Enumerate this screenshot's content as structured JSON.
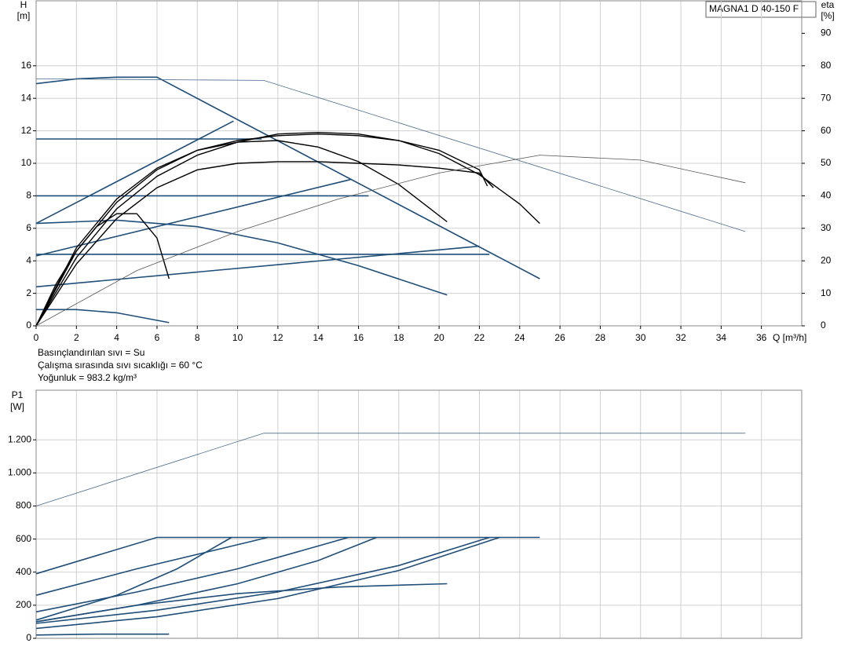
{
  "chart_data": [
    {
      "type": "line",
      "title": "MAGNA1 D 40-150 F",
      "y_label": "H",
      "y_unit": "[m]",
      "y2_label": "eta",
      "y2_unit": "[%]",
      "x_label": "Q [m³/h]",
      "notes": [
        "Basınçlandırılan sıvı = Su",
        "Çalışma sırasında sıvı sıcaklığı = 60 °C",
        "Yoğunluk = 983.2 kg/m³"
      ],
      "xlim": [
        0,
        38
      ],
      "xticks": [
        0,
        2,
        4,
        6,
        8,
        10,
        12,
        14,
        16,
        18,
        20,
        22,
        24,
        26,
        28,
        30,
        32,
        34,
        36
      ],
      "ylim": [
        0,
        20
      ],
      "yticks": [
        0,
        2,
        4,
        6,
        8,
        10,
        12,
        14,
        16
      ],
      "y2lim": [
        0,
        100
      ],
      "y2ticks": [
        0,
        10,
        20,
        30,
        40,
        50,
        60,
        70,
        80,
        90
      ],
      "grid": true,
      "series": [
        {
          "color": "#1f4e79",
          "line_width": 1.6,
          "x": [
            0,
            2,
            4,
            6,
            25
          ],
          "values": [
            14.9,
            15.2,
            15.3,
            15.3,
            2.9
          ]
        },
        {
          "color": "#1f4e79",
          "line_width": 1.6,
          "x": [
            0,
            9.8
          ],
          "values": [
            6.3,
            12.6
          ]
        },
        {
          "color": "#1f4e79",
          "line_width": 1.6,
          "x": [
            0,
            11.2
          ],
          "values": [
            11.5,
            11.5
          ]
        },
        {
          "color": "#1f4e79",
          "line_width": 1.6,
          "x": [
            0,
            16.5
          ],
          "values": [
            8,
            8
          ]
        },
        {
          "color": "#1f4e79",
          "line_width": 1.6,
          "x": [
            0,
            22.5
          ],
          "values": [
            4.4,
            4.4
          ]
        },
        {
          "color": "#1f4e79",
          "line_width": 1.6,
          "x": [
            0,
            15.6
          ],
          "values": [
            4.3,
            9
          ]
        },
        {
          "color": "#1f4e79",
          "line_width": 1.6,
          "x": [
            0,
            22
          ],
          "values": [
            2.4,
            4.9
          ]
        },
        {
          "color": "#1f4e79",
          "line_width": 1.6,
          "x": [
            0,
            4,
            8,
            12,
            16,
            20.4
          ],
          "values": [
            6.3,
            6.5,
            6.1,
            5.1,
            3.7,
            1.9
          ]
        },
        {
          "color": "#1f4e79",
          "line_width": 1.6,
          "x": [
            0,
            2,
            4,
            6.6
          ],
          "values": [
            1,
            1,
            0.8,
            0.2
          ]
        },
        {
          "color": "#4a6a8a",
          "line_width": 0.8,
          "x": [
            0,
            11.3,
            35.2
          ],
          "values": [
            15.2,
            15.1,
            5.8
          ]
        },
        {
          "color": "#000000",
          "line_width": 1.4,
          "x": [
            0,
            1,
            2,
            3,
            4,
            5,
            6,
            6.6
          ],
          "values": [
            0,
            2.6,
            4.6,
            6.1,
            6.9,
            6.9,
            5.4,
            2.9
          ]
        },
        {
          "color": "#000000",
          "line_width": 1.4,
          "x": [
            0,
            2,
            4,
            6,
            8,
            10,
            12,
            14,
            16,
            18,
            20.4
          ],
          "values": [
            0,
            4.8,
            7.8,
            9.7,
            10.8,
            11.3,
            11.4,
            11,
            10.1,
            8.7,
            6.4
          ]
        },
        {
          "color": "#000000",
          "line_width": 1.4,
          "x": [
            0,
            2,
            4,
            6,
            8,
            10,
            12,
            14,
            16,
            18,
            20,
            22,
            22.4
          ],
          "values": [
            0,
            4.6,
            7.6,
            9.6,
            10.8,
            11.4,
            11.7,
            11.8,
            11.7,
            11.4,
            10.8,
            9.6,
            8.6
          ]
        },
        {
          "color": "#000000",
          "line_width": 1.4,
          "x": [
            0,
            2,
            4,
            6,
            8,
            10,
            12,
            14,
            16,
            18,
            20,
            22,
            24,
            25
          ],
          "values": [
            0,
            4.2,
            7.2,
            9.2,
            10.5,
            11.3,
            11.8,
            11.9,
            11.8,
            11.4,
            10.6,
            9.3,
            7.5,
            6.3
          ]
        },
        {
          "color": "#000000",
          "line_width": 1.4,
          "x": [
            0,
            2,
            4,
            6,
            8,
            10,
            12,
            14,
            16,
            18,
            20,
            22,
            22.7
          ],
          "values": [
            0,
            3.8,
            6.6,
            8.5,
            9.6,
            10,
            10.1,
            10.1,
            10,
            9.9,
            9.7,
            9.4,
            8.5
          ]
        },
        {
          "color": "#555555",
          "line_width": 0.8,
          "axis": "y2",
          "x": [
            0,
            5,
            10,
            15,
            20,
            25,
            30,
            35.2
          ],
          "values": [
            0,
            17,
            29,
            39,
            47,
            52.5,
            51,
            44
          ]
        }
      ]
    },
    {
      "type": "line",
      "y_label": "P1",
      "y_unit": "[W]",
      "xlim": [
        0,
        38
      ],
      "xticks": [
        0,
        2,
        4,
        6,
        8,
        10,
        12,
        14,
        16,
        18,
        20,
        22,
        24,
        26,
        28,
        30,
        32,
        34,
        36
      ],
      "ylim": [
        0,
        1500
      ],
      "yticks": [
        0,
        200,
        400,
        600,
        800,
        {
          "value": 1000,
          "label": "1.000"
        },
        {
          "value": 1200,
          "label": "1.200"
        }
      ],
      "grid": true,
      "series": [
        {
          "color": "#4a6a8a",
          "line_width": 0.8,
          "x": [
            0,
            11.3,
            35.2
          ],
          "values": [
            800,
            1240,
            1240
          ]
        },
        {
          "color": "#1f4e79",
          "line_width": 1.6,
          "x": [
            0,
            6,
            25
          ],
          "values": [
            390,
            610,
            610
          ]
        },
        {
          "color": "#1f4e79",
          "line_width": 1.6,
          "x": [
            0,
            5,
            11.5
          ],
          "values": [
            260,
            420,
            610
          ]
        },
        {
          "color": "#1f4e79",
          "line_width": 1.6,
          "x": [
            0,
            4,
            7,
            9.7
          ],
          "values": [
            110,
            260,
            420,
            610
          ]
        },
        {
          "color": "#1f4e79",
          "line_width": 1.6,
          "x": [
            0,
            5,
            10,
            15.5
          ],
          "values": [
            160,
            280,
            420,
            610
          ]
        },
        {
          "color": "#1f4e79",
          "line_width": 1.6,
          "x": [
            0,
            5,
            10,
            14,
            16.9
          ],
          "values": [
            100,
            200,
            330,
            470,
            610
          ]
        },
        {
          "color": "#1f4e79",
          "line_width": 1.6,
          "x": [
            0,
            6,
            12,
            18,
            22.5
          ],
          "values": [
            90,
            170,
            280,
            440,
            610
          ]
        },
        {
          "color": "#1f4e79",
          "line_width": 1.6,
          "x": [
            0,
            6,
            12,
            18,
            23
          ],
          "values": [
            60,
            130,
            240,
            410,
            610
          ]
        },
        {
          "color": "#1f4e79",
          "line_width": 1.6,
          "x": [
            0,
            5,
            10,
            15,
            20.4
          ],
          "values": [
            100,
            200,
            270,
            310,
            330
          ]
        },
        {
          "color": "#1f4e79",
          "line_width": 1.6,
          "x": [
            0,
            3,
            6.6
          ],
          "values": [
            20,
            25,
            25
          ]
        }
      ]
    }
  ]
}
